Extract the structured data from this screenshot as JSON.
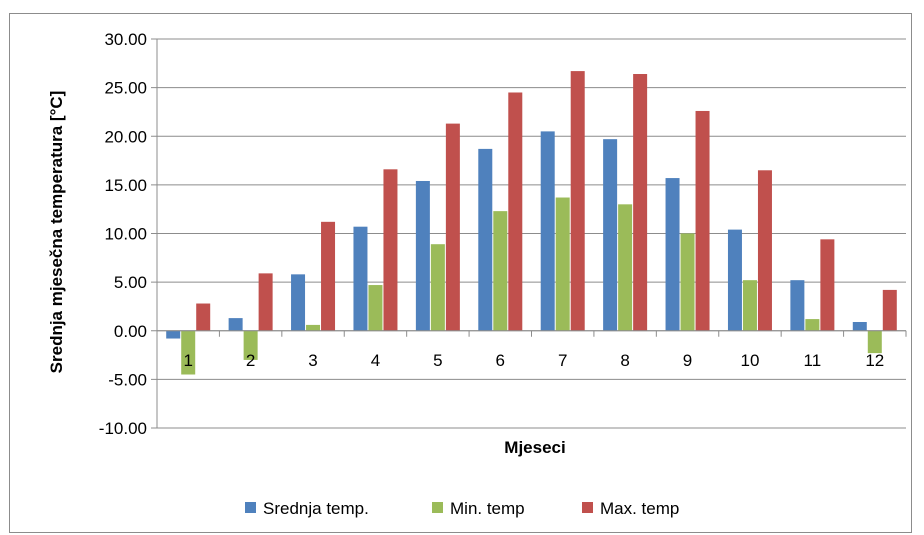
{
  "chart_data": {
    "type": "bar",
    "title": "",
    "xlabel": "Mjeseci",
    "ylabel": "Srednja mjesečna temperatura [°C]",
    "ylim": [
      -10,
      30
    ],
    "y_ticks": [
      "30.00",
      "25.00",
      "20.00",
      "15.00",
      "10.00",
      "5.00",
      "0.00",
      "-5.00",
      "-10.00"
    ],
    "grid": true,
    "legend_position": "bottom",
    "categories": [
      "1",
      "2",
      "3",
      "4",
      "5",
      "6",
      "7",
      "8",
      "9",
      "10",
      "11",
      "12"
    ],
    "series": [
      {
        "name": "Srednja temp.",
        "color": "#4f81bd",
        "values": [
          -0.8,
          1.3,
          5.8,
          10.7,
          15.4,
          18.7,
          20.5,
          19.7,
          15.7,
          10.4,
          5.2,
          0.9
        ]
      },
      {
        "name": "Min. temp",
        "color": "#9bbb59",
        "values": [
          -4.5,
          -3.0,
          0.6,
          4.7,
          8.9,
          12.3,
          13.7,
          13.0,
          10.0,
          5.2,
          1.2,
          -2.3
        ]
      },
      {
        "name": "Max. temp",
        "color": "#c0504d",
        "values": [
          2.8,
          5.9,
          11.2,
          16.6,
          21.3,
          24.5,
          26.7,
          26.4,
          22.6,
          16.5,
          9.4,
          4.2
        ]
      }
    ]
  }
}
